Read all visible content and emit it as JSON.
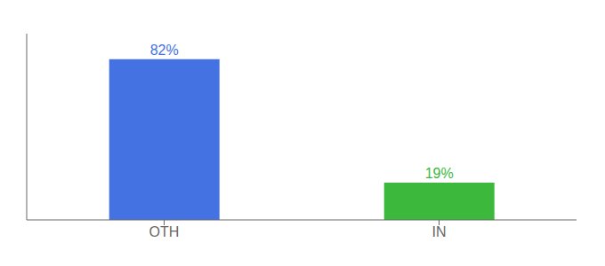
{
  "chart_data": {
    "type": "bar",
    "categories": [
      "OTH",
      "IN"
    ],
    "values": [
      82,
      19
    ],
    "value_labels": [
      "82%",
      "19%"
    ],
    "colors": [
      "#4472E3",
      "#3CB83C"
    ],
    "ylim": [
      0,
      95
    ],
    "yticks": [],
    "tick_labels": "x",
    "data_labels": true,
    "grid": false
  }
}
